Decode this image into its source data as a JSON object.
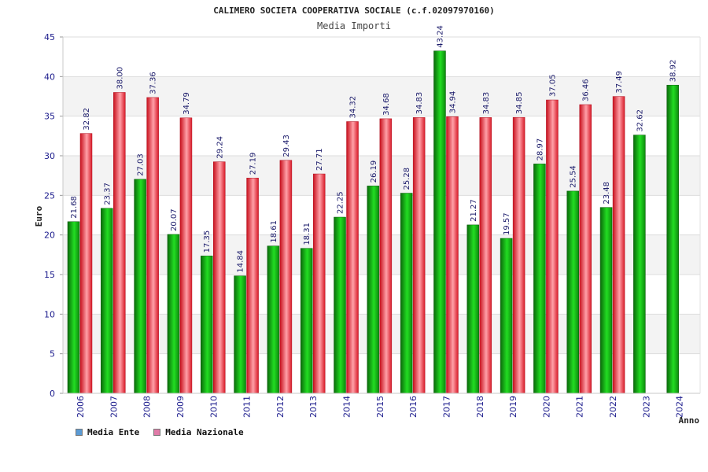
{
  "chart_data": {
    "type": "bar",
    "title": "CALIMERO SOCIETA COOPERATIVA SOCIALE (c.f.02097970160)",
    "subtitle": "Media Importi",
    "ylabel": "Euro",
    "xlabel": "Anno",
    "ylim": [
      0,
      45
    ],
    "yticks": [
      0,
      5,
      10,
      15,
      20,
      25,
      30,
      35,
      40,
      45
    ],
    "categories": [
      "2006",
      "2007",
      "2008",
      "2009",
      "2010",
      "2011",
      "2012",
      "2013",
      "2014",
      "2015",
      "2016",
      "2017",
      "2018",
      "2019",
      "2020",
      "2021",
      "2022",
      "2023",
      "2024"
    ],
    "series": [
      {
        "name": "Media Ente",
        "color": "#11bb11",
        "values": [
          21.68,
          23.37,
          27.03,
          20.07,
          17.35,
          14.84,
          18.61,
          18.31,
          22.25,
          26.19,
          25.28,
          43.24,
          21.27,
          19.57,
          28.97,
          25.54,
          23.48,
          32.62,
          38.92
        ],
        "labels": [
          "21.68",
          "23.37",
          "27.03",
          "20.07",
          "17.35",
          "14.84",
          "18.61",
          "18.31",
          "22.25",
          "26.19",
          "25.28",
          "43.24",
          "21.27",
          "19.57",
          "28.97",
          "25.54",
          "23.48",
          "32.62",
          "38.92"
        ]
      },
      {
        "name": "Media Nazionale",
        "color": "#ee2233",
        "values": [
          32.82,
          38.0,
          37.36,
          34.79,
          29.24,
          27.19,
          29.43,
          27.71,
          34.32,
          34.68,
          34.83,
          34.94,
          34.83,
          34.85,
          37.05,
          36.46,
          37.49,
          null,
          null
        ],
        "labels": [
          "32.82",
          "38.00",
          "37.36",
          "34.79",
          "29.24",
          "27.19",
          "29.43",
          "27.71",
          "34.32",
          "34.68",
          "34.83",
          "34.94",
          "34.83",
          "34.85",
          "37.05",
          "36.46",
          "37.49",
          null,
          null
        ]
      }
    ],
    "legend": {
      "position": "bottom-left",
      "items": [
        {
          "label": "Media Ente",
          "color": "#5b9bd5"
        },
        {
          "label": "Media Nazionale",
          "color": "#e07ba8"
        }
      ]
    }
  }
}
